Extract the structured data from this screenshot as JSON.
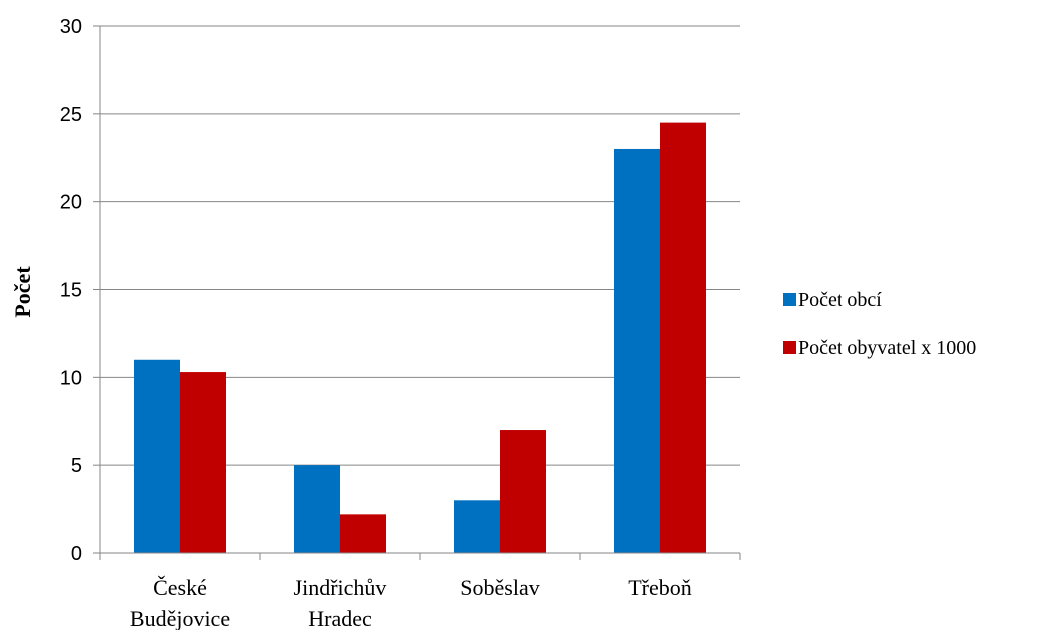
{
  "chart_data": {
    "type": "bar",
    "categories": [
      [
        "České",
        "Budějovice"
      ],
      [
        "Jindřichův",
        "Hradec"
      ],
      [
        "Soběslav"
      ],
      [
        "Třeboň"
      ]
    ],
    "series": [
      {
        "name": "Počet obcí",
        "color": "#0070C0",
        "values": [
          11,
          5,
          3,
          23
        ]
      },
      {
        "name": "Počet obyvatel x 1000",
        "color": "#C00000",
        "values": [
          10.3,
          2.2,
          7,
          24.5
        ]
      }
    ],
    "ylabel": "Počet",
    "xlabel": "",
    "ylim": [
      0,
      30
    ],
    "yticks": [
      0,
      5,
      10,
      15,
      20,
      25,
      30
    ],
    "grid": true,
    "legend_position": "right"
  }
}
